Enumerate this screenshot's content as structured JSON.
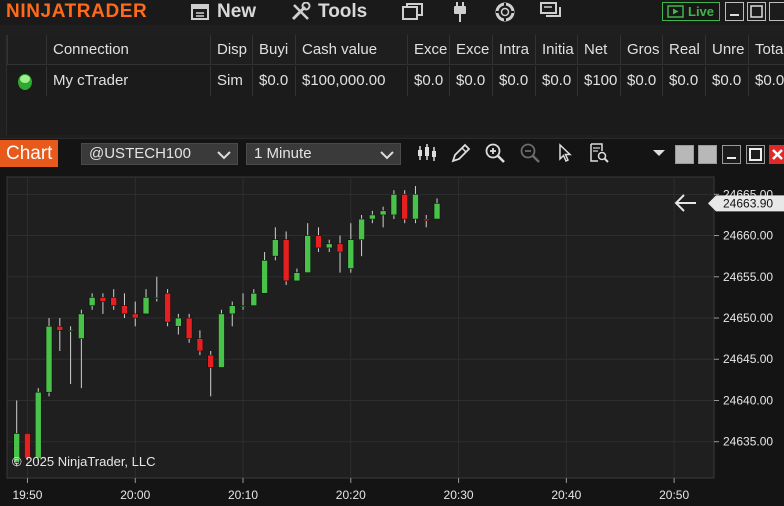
{
  "app": {
    "logo": "NINJATRADER",
    "menu": [
      {
        "label": "New",
        "icon": "new-window-icon"
      },
      {
        "label": "Tools",
        "icon": "tools-icon"
      }
    ],
    "toolbar_icons": [
      "workspaces-icon",
      "connection-plug-icon",
      "help-lifebuoy-icon",
      "messages-icon"
    ],
    "live_label": "Live",
    "colors": {
      "brand": "#ff6a1a",
      "live": "#3fb54b",
      "up": "#49c249",
      "down": "#e52020"
    }
  },
  "accounts": {
    "columns": [
      "Connection",
      "Disp",
      "Buyi",
      "Cash value",
      "Exce",
      "Exce",
      "Intra",
      "Initia",
      "Net",
      "Gros",
      "Real",
      "Unre",
      "Tota"
    ],
    "rows": [
      {
        "status": "connected",
        "cells": [
          "My cTrader",
          "Sim",
          "$0.0",
          "$100,000.00",
          "$0.0",
          "$0.0",
          "$0.0",
          "$0.0",
          "$100",
          "$0.0",
          "$0.0",
          "$0.0",
          "$0.0"
        ]
      }
    ]
  },
  "chart": {
    "tab_label": "Chart",
    "instrument": "@USTECH100",
    "interval": "1 Minute",
    "copyright": "© 2025 NinjaTrader, LLC",
    "last_price": "24663.90"
  },
  "chart_data": {
    "type": "candlestick",
    "x_ticks": [
      "19:50",
      "20:00",
      "20:10",
      "20:20",
      "20:30",
      "20:40",
      "20:50"
    ],
    "x_tick_minutes": [
      0,
      10,
      20,
      30,
      40,
      50,
      60
    ],
    "x_range_minutes": [
      -1.9,
      63.7
    ],
    "y_ticks": [
      "24635.00",
      "24640.00",
      "24645.00",
      "24650.00",
      "24655.00",
      "24660.00",
      "24665.00"
    ],
    "y_tick_values": [
      24635,
      24640,
      24645,
      24650,
      24655,
      24660,
      24665
    ],
    "ylim": [
      24630.6,
      24667.1
    ],
    "last_price": 24663.9,
    "grid": true,
    "candles": [
      {
        "t": -1,
        "o": 24632.5,
        "h": 24640.0,
        "l": 24632.0,
        "c": 24636.0
      },
      {
        "t": 0,
        "o": 24636.0,
        "h": 24636.0,
        "l": 24632.8,
        "c": 24633.0
      },
      {
        "t": 1,
        "o": 24633.0,
        "h": 24641.5,
        "l": 24632.5,
        "c": 24641.0
      },
      {
        "t": 2,
        "o": 24641.0,
        "h": 24650.0,
        "l": 24640.5,
        "c": 24649.0
      },
      {
        "t": 3,
        "o": 24649.0,
        "h": 24650.0,
        "l": 24646.0,
        "c": 24648.5
      },
      {
        "t": 4,
        "o": 24648.5,
        "h": 24649.0,
        "l": 24642.0,
        "c": 24648.5
      },
      {
        "t": 5,
        "o": 24647.5,
        "h": 24651.0,
        "l": 24641.5,
        "c": 24650.5
      },
      {
        "t": 6,
        "o": 24651.5,
        "h": 24653.0,
        "l": 24651.0,
        "c": 24652.5
      },
      {
        "t": 7,
        "o": 24652.5,
        "h": 24653.0,
        "l": 24650.5,
        "c": 24652.0
      },
      {
        "t": 8,
        "o": 24652.5,
        "h": 24653.5,
        "l": 24651.0,
        "c": 24651.5
      },
      {
        "t": 9,
        "o": 24651.5,
        "h": 24653.0,
        "l": 24650.0,
        "c": 24650.5
      },
      {
        "t": 10,
        "o": 24650.5,
        "h": 24652.0,
        "l": 24649.0,
        "c": 24650.0
      },
      {
        "t": 11,
        "o": 24650.5,
        "h": 24653.5,
        "l": 24650.5,
        "c": 24652.5
      },
      {
        "t": 12,
        "o": 24652.5,
        "h": 24655.0,
        "l": 24652.0,
        "c": 24652.5
      },
      {
        "t": 13,
        "o": 24653.0,
        "h": 24653.5,
        "l": 24649.0,
        "c": 24649.5
      },
      {
        "t": 14,
        "o": 24649.0,
        "h": 24650.5,
        "l": 24648.0,
        "c": 24650.0
      },
      {
        "t": 15,
        "o": 24650.0,
        "h": 24650.5,
        "l": 24647.0,
        "c": 24647.5
      },
      {
        "t": 16,
        "o": 24647.5,
        "h": 24648.5,
        "l": 24645.5,
        "c": 24646.0
      },
      {
        "t": 17,
        "o": 24645.5,
        "h": 24646.0,
        "l": 24640.5,
        "c": 24644.0
      },
      {
        "t": 18,
        "o": 24644.0,
        "h": 24651.0,
        "l": 24644.0,
        "c": 24650.5
      },
      {
        "t": 19,
        "o": 24650.5,
        "h": 24652.0,
        "l": 24649.0,
        "c": 24651.5
      },
      {
        "t": 20,
        "o": 24651.5,
        "h": 24653.0,
        "l": 24651.0,
        "c": 24651.5
      },
      {
        "t": 21,
        "o": 24651.5,
        "h": 24653.5,
        "l": 24651.5,
        "c": 24653.0
      },
      {
        "t": 22,
        "o": 24653.0,
        "h": 24658.0,
        "l": 24653.0,
        "c": 24657.0
      },
      {
        "t": 23,
        "o": 24657.5,
        "h": 24661.0,
        "l": 24657.0,
        "c": 24659.5
      },
      {
        "t": 24,
        "o": 24659.5,
        "h": 24660.5,
        "l": 24654.0,
        "c": 24654.5
      },
      {
        "t": 25,
        "o": 24654.5,
        "h": 24656.0,
        "l": 24654.5,
        "c": 24655.5
      },
      {
        "t": 26,
        "o": 24655.5,
        "h": 24661.5,
        "l": 24655.5,
        "c": 24660.0
      },
      {
        "t": 27,
        "o": 24660.0,
        "h": 24661.0,
        "l": 24658.0,
        "c": 24658.5
      },
      {
        "t": 28,
        "o": 24658.5,
        "h": 24659.5,
        "l": 24658.0,
        "c": 24659.0
      },
      {
        "t": 29,
        "o": 24659.0,
        "h": 24660.0,
        "l": 24655.5,
        "c": 24658.0
      },
      {
        "t": 30,
        "o": 24656.0,
        "h": 24661.5,
        "l": 24655.5,
        "c": 24659.5
      },
      {
        "t": 31,
        "o": 24659.5,
        "h": 24662.5,
        "l": 24657.5,
        "c": 24662.0
      },
      {
        "t": 32,
        "o": 24662.0,
        "h": 24663.0,
        "l": 24661.5,
        "c": 24662.5
      },
      {
        "t": 33,
        "o": 24662.5,
        "h": 24663.5,
        "l": 24661.0,
        "c": 24663.0
      },
      {
        "t": 34,
        "o": 24662.5,
        "h": 24665.5,
        "l": 24662.0,
        "c": 24665.0
      },
      {
        "t": 35,
        "o": 24665.0,
        "h": 24665.5,
        "l": 24661.5,
        "c": 24662.0
      },
      {
        "t": 36,
        "o": 24662.0,
        "h": 24666.0,
        "l": 24661.5,
        "c": 24665.0
      },
      {
        "t": 37,
        "o": 24662.0,
        "h": 24662.5,
        "l": 24661.0,
        "c": 24661.8
      },
      {
        "t": 38,
        "o": 24662.0,
        "h": 24664.5,
        "l": 24662.0,
        "c": 24663.9
      }
    ]
  }
}
